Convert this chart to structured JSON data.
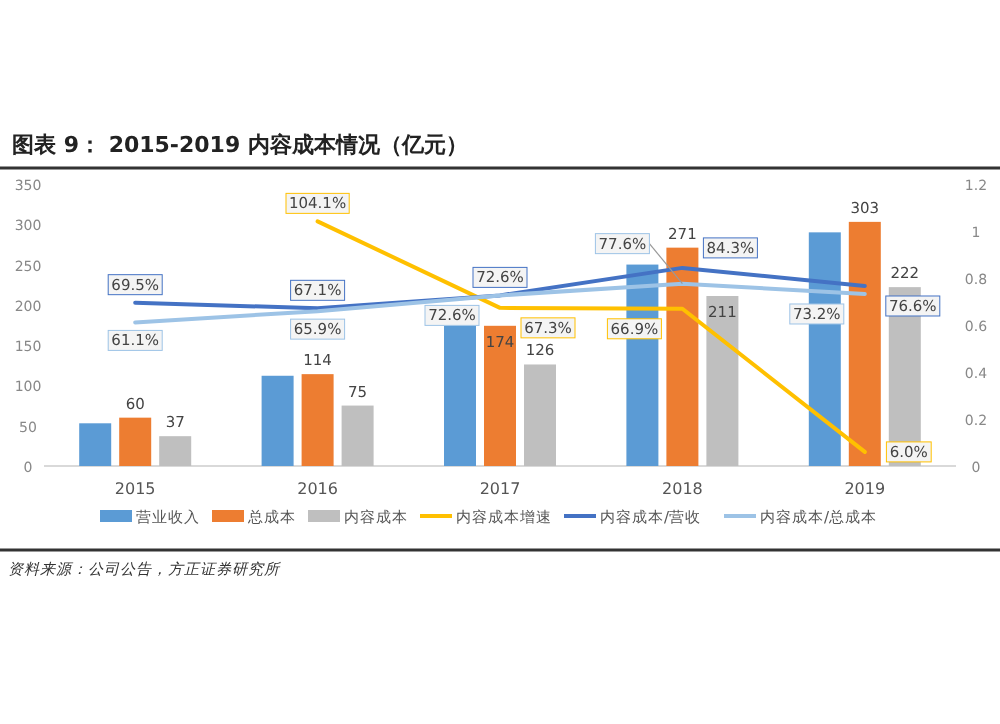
{
  "chart_data": {
    "type": "bar",
    "title": "图表 9：  2015-2019 内容成本情况（亿元）",
    "categories": [
      "2015",
      "2016",
      "2017",
      "2018",
      "2019"
    ],
    "series": [
      {
        "name": "营业收入",
        "color": "#5b9bd5",
        "values": [
          53,
          112,
          174,
          250,
          290
        ]
      },
      {
        "name": "总成本",
        "color": "#ed7d31",
        "values": [
          60,
          114,
          174,
          271,
          303
        ],
        "value_labels": [
          "60",
          "114",
          "174",
          "271",
          "303"
        ]
      },
      {
        "name": "内容成本",
        "color": "#bfbfbf",
        "values": [
          37,
          75,
          126,
          211,
          222
        ],
        "value_labels": [
          "37",
          "75",
          "126",
          "211",
          "222"
        ]
      },
      {
        "name": "内容成本增速",
        "type": "line",
        "axis": "y2",
        "color": "#ffc000",
        "values": [
          null,
          1.041,
          0.673,
          0.669,
          0.06
        ],
        "value_labels": [
          null,
          "104.1%",
          "67.3%",
          "66.9%",
          "6.0%"
        ]
      },
      {
        "name": "内容成本/营收",
        "type": "line",
        "axis": "y2",
        "color": "#4472c4",
        "values": [
          0.695,
          0.671,
          0.726,
          0.843,
          0.766
        ],
        "value_labels": [
          "69.5%",
          "67.1%",
          "72.6%",
          "84.3%",
          "76.6%"
        ]
      },
      {
        "name": "内容成本/总成本",
        "type": "line",
        "axis": "y2",
        "color": "#9dc3e6",
        "values": [
          0.611,
          0.659,
          0.726,
          0.776,
          0.732
        ],
        "value_labels": [
          "61.1%",
          "65.9%",
          "72.6%",
          "77.6%",
          "73.2%"
        ]
      }
    ],
    "ylim": [
      0,
      350
    ],
    "yticks": [
      0,
      50,
      100,
      150,
      200,
      250,
      300,
      350
    ],
    "y2lim": [
      0,
      1.2
    ],
    "y2ticks": [
      0,
      0.2,
      0.4,
      0.6,
      0.8,
      1,
      1.2
    ],
    "legend": "bottom",
    "annotations": [
      "资料来源：公司公告，方正证券研究所"
    ]
  }
}
